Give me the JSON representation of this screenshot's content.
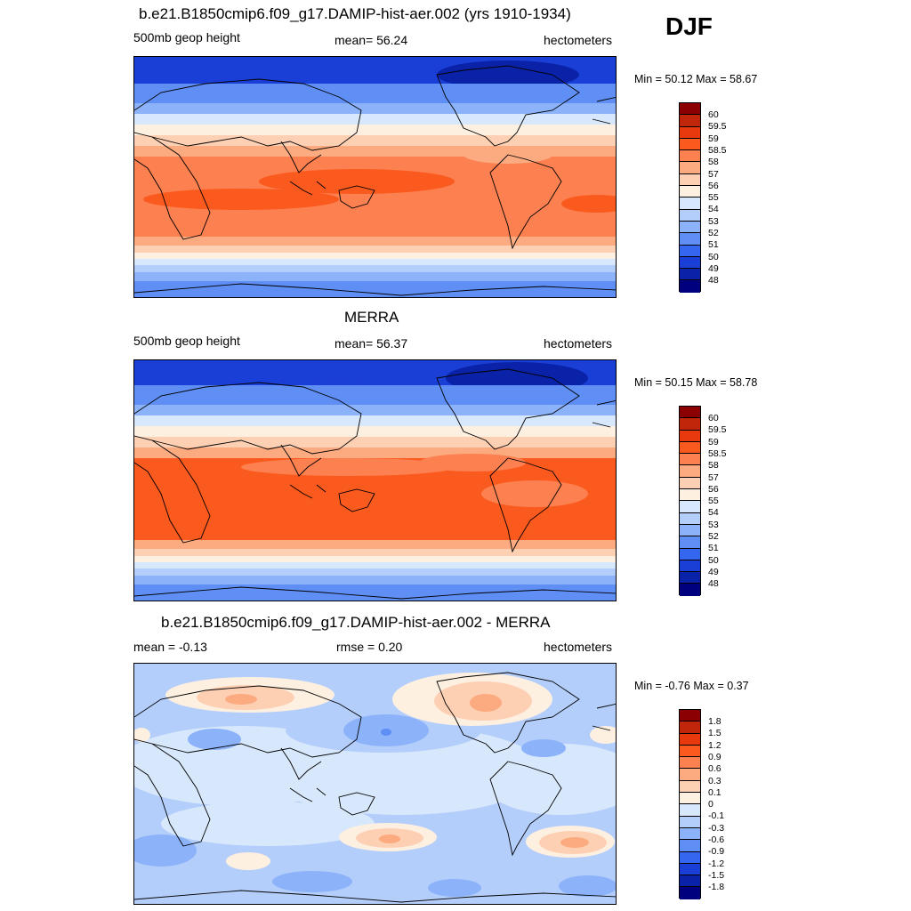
{
  "season": "DJF",
  "panels": [
    {
      "id": "model",
      "title": "b.e21.B1850cmip6.f09_g17.DAMIP-hist-aer.002 (yrs 1910-1934)",
      "left_label": "500mb geop height",
      "center_label": "mean=  56.24",
      "right_label": "hectometers",
      "minmax": "Min =  50.12 Max =  58.67",
      "colorbar_labels": [
        "60",
        "59.5",
        "59",
        "58.5",
        "58",
        "57",
        "56",
        "55",
        "54",
        "53",
        "52",
        "51",
        "50",
        "49",
        "48"
      ]
    },
    {
      "id": "obs",
      "title": "MERRA",
      "left_label": "500mb geop height",
      "center_label": "mean=  56.37",
      "right_label": "hectometers",
      "minmax": "Min =  50.15 Max =  58.78",
      "colorbar_labels": [
        "60",
        "59.5",
        "59",
        "58.5",
        "58",
        "57",
        "56",
        "55",
        "54",
        "53",
        "52",
        "51",
        "50",
        "49",
        "48"
      ]
    },
    {
      "id": "diff",
      "title": "b.e21.B1850cmip6.f09_g17.DAMIP-hist-aer.002 - MERRA",
      "left_label": "mean =  -0.13",
      "center_label": "rmse =   0.20",
      "right_label": "hectometers",
      "minmax": "Min =  -0.76 Max =   0.37",
      "colorbar_labels": [
        "1.8",
        "1.5",
        "1.2",
        "0.9",
        "0.6",
        "0.3",
        "0.1",
        "0",
        "-0.1",
        "-0.3",
        "-0.6",
        "-0.9",
        "-1.2",
        "-1.5",
        "-1.8"
      ]
    }
  ],
  "colors": {
    "colorbar_top_to_bottom": [
      "#8b0000",
      "#c2260a",
      "#e8380d",
      "#fb5a1e",
      "#fc8050",
      "#fcaa80",
      "#fdd0b4",
      "#fef0e1",
      "#d8e8fc",
      "#b4cefb",
      "#8cb2fa",
      "#5f8ff5",
      "#3466f0",
      "#1a3fd6",
      "#0a22a8",
      "#00007f"
    ],
    "ocean_neutral": "#c9ddfb",
    "coastline": "#000000"
  },
  "chart_data": [
    {
      "type": "heatmap",
      "variable": "500mb geop height",
      "units": "hectometers",
      "mean": 56.24,
      "min": 50.12,
      "max": 58.67,
      "levels": [
        48,
        49,
        50,
        51,
        52,
        53,
        54,
        55,
        56,
        57,
        58,
        58.5,
        59,
        59.5,
        60
      ]
    },
    {
      "type": "heatmap",
      "variable": "500mb geop height",
      "units": "hectometers",
      "mean": 56.37,
      "min": 50.15,
      "max": 58.78,
      "levels": [
        48,
        49,
        50,
        51,
        52,
        53,
        54,
        55,
        56,
        57,
        58,
        58.5,
        59,
        59.5,
        60
      ]
    },
    {
      "type": "heatmap",
      "units": "hectometers",
      "mean": -0.13,
      "rmse": 0.2,
      "min": -0.76,
      "max": 0.37,
      "levels": [
        -1.8,
        -1.5,
        -1.2,
        -0.9,
        -0.6,
        -0.3,
        -0.1,
        0,
        0.1,
        0.3,
        0.6,
        0.9,
        1.2,
        1.5,
        1.8
      ]
    }
  ]
}
